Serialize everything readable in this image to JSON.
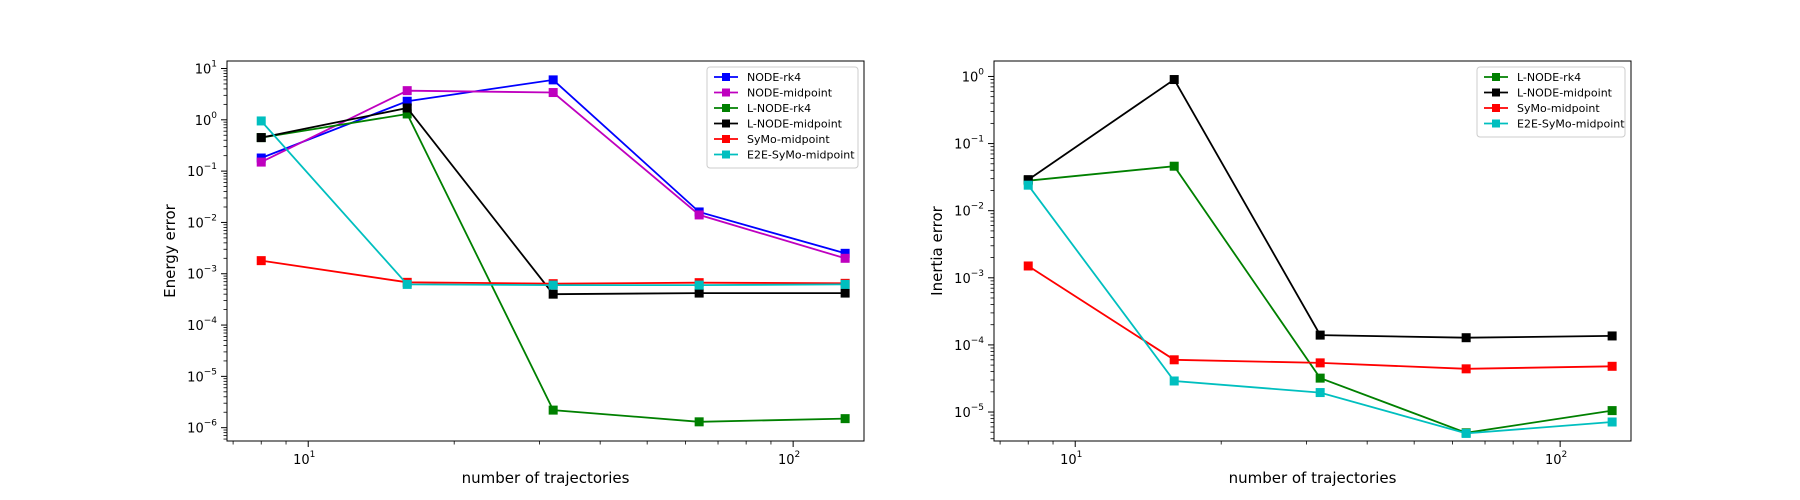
{
  "chart_data": [
    {
      "type": "line",
      "x_scale": "log",
      "y_scale": "log",
      "xlabel": "number of trajectories",
      "ylabel": "Energy error",
      "xlim": [
        6.8,
        140
      ],
      "ylim": [
        5.5e-07,
        14
      ],
      "legend_position": "top-right",
      "x_ticks": [
        {
          "base": "10",
          "exp": "1",
          "value": 10
        },
        {
          "base": "10",
          "exp": "2",
          "value": 100
        }
      ],
      "y_ticks": [
        {
          "base": "10",
          "exp": "−6",
          "value": 1e-06
        },
        {
          "base": "10",
          "exp": "−5",
          "value": 1e-05
        },
        {
          "base": "10",
          "exp": "−4",
          "value": 0.0001
        },
        {
          "base": "10",
          "exp": "−3",
          "value": 0.001
        },
        {
          "base": "10",
          "exp": "−2",
          "value": 0.01
        },
        {
          "base": "10",
          "exp": "−1",
          "value": 0.1
        },
        {
          "base": "10",
          "exp": "0",
          "value": 1
        },
        {
          "base": "10",
          "exp": "1",
          "value": 10
        }
      ],
      "x": [
        8,
        16,
        32,
        64,
        128
      ],
      "series": [
        {
          "name": "NODE-rk4",
          "color": "#0000ff",
          "values": [
            0.18,
            2.3,
            6.0,
            0.016,
            0.0025
          ]
        },
        {
          "name": "NODE-midpoint",
          "color": "#bf00bf",
          "values": [
            0.15,
            3.7,
            3.4,
            0.014,
            0.002
          ]
        },
        {
          "name": "L-NODE-rk4",
          "color": "#008000",
          "values": [
            0.45,
            1.3,
            2.2e-06,
            1.3e-06,
            1.5e-06
          ]
        },
        {
          "name": "L-NODE-midpoint",
          "color": "#000000",
          "values": [
            0.45,
            1.7,
            0.0004,
            0.00042,
            0.00042
          ]
        },
        {
          "name": "SyMo-midpoint",
          "color": "#ff0000",
          "values": [
            0.0018,
            0.00068,
            0.00064,
            0.00067,
            0.00065
          ]
        },
        {
          "name": "E2E-SyMo-midpoint",
          "color": "#00bfbf",
          "values": [
            0.95,
            0.00062,
            0.0006,
            0.0006,
            0.00062
          ]
        }
      ]
    },
    {
      "type": "line",
      "x_scale": "log",
      "y_scale": "log",
      "xlabel": "number of trajectories",
      "ylabel": "Inertia error",
      "xlim": [
        6.8,
        140
      ],
      "ylim": [
        3.7e-06,
        1.7
      ],
      "legend_position": "top-right",
      "x_ticks": [
        {
          "base": "10",
          "exp": "1",
          "value": 10
        },
        {
          "base": "10",
          "exp": "2",
          "value": 100
        }
      ],
      "y_ticks": [
        {
          "base": "10",
          "exp": "−5",
          "value": 1e-05
        },
        {
          "base": "10",
          "exp": "−4",
          "value": 0.0001
        },
        {
          "base": "10",
          "exp": "−3",
          "value": 0.001
        },
        {
          "base": "10",
          "exp": "−2",
          "value": 0.01
        },
        {
          "base": "10",
          "exp": "−1",
          "value": 0.1
        },
        {
          "base": "10",
          "exp": "0",
          "value": 1
        }
      ],
      "x": [
        8,
        16,
        32,
        64,
        128
      ],
      "series": [
        {
          "name": "L-NODE-rk4",
          "color": "#008000",
          "values": [
            0.028,
            0.046,
            3.2e-05,
            4.9e-06,
            1.05e-05
          ]
        },
        {
          "name": "L-NODE-midpoint",
          "color": "#000000",
          "values": [
            0.029,
            0.9,
            0.00014,
            0.000128,
            0.000136
          ]
        },
        {
          "name": "SyMo-midpoint",
          "color": "#ff0000",
          "values": [
            0.0015,
            6e-05,
            5.4e-05,
            4.4e-05,
            4.8e-05
          ]
        },
        {
          "name": "E2E-SyMo-midpoint",
          "color": "#00bfbf",
          "values": [
            0.024,
            2.9e-05,
            1.95e-05,
            4.8e-06,
            7.1e-06
          ]
        }
      ]
    }
  ]
}
